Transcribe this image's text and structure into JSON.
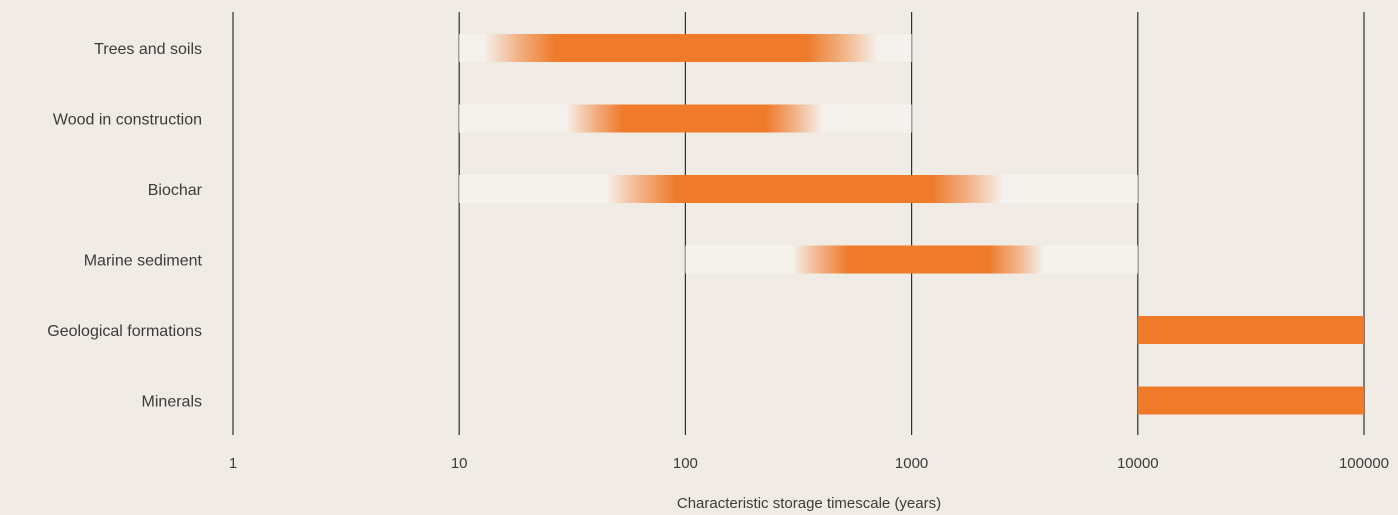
{
  "chart_data": {
    "type": "bar",
    "orientation": "horizontal",
    "x_scale": "log",
    "xlim": [
      1,
      100000
    ],
    "xlabel": "Characteristic storage timescale (years)",
    "ylabel": "",
    "title": "",
    "x_ticks": [
      "1",
      "10",
      "100",
      "1000",
      "10000",
      "100000"
    ],
    "tick_values": [
      1,
      10,
      100,
      1000,
      10000,
      100000
    ],
    "grid": "vertical",
    "legend": "none",
    "colors": {
      "background": "#f0ece5",
      "bar": "#ee7a2a",
      "bar_light": "#f4d2b5",
      "gridline": "#2f2f2f",
      "text": "#3b3b3b",
      "range_track": "#f5f1ec"
    },
    "categories": [
      "Trees and soils",
      "Wood in construction",
      "Biochar",
      "Marine sediment",
      "Geological formations",
      "Minerals"
    ],
    "ranges": [
      {
        "category": "Trees and soils",
        "outer_min": 10,
        "outer_max": 1000,
        "core_min": 13,
        "core_max": 700,
        "fade": true
      },
      {
        "category": "Wood in construction",
        "outer_min": 10,
        "outer_max": 1000,
        "core_min": 30,
        "core_max": 400,
        "fade": true
      },
      {
        "category": "Biochar",
        "outer_min": 10,
        "outer_max": 10000,
        "core_min": 45,
        "core_max": 2500,
        "fade": true
      },
      {
        "category": "Marine sediment",
        "outer_min": 100,
        "outer_max": 10000,
        "core_min": 300,
        "core_max": 3800,
        "fade": true
      },
      {
        "category": "Geological formations",
        "outer_min": 10000,
        "outer_max": 100000,
        "core_min": 10000,
        "core_max": 100000,
        "fade": false
      },
      {
        "category": "Minerals",
        "outer_min": 10000,
        "outer_max": 100000,
        "core_min": 10000,
        "core_max": 100000,
        "fade": false
      }
    ]
  }
}
